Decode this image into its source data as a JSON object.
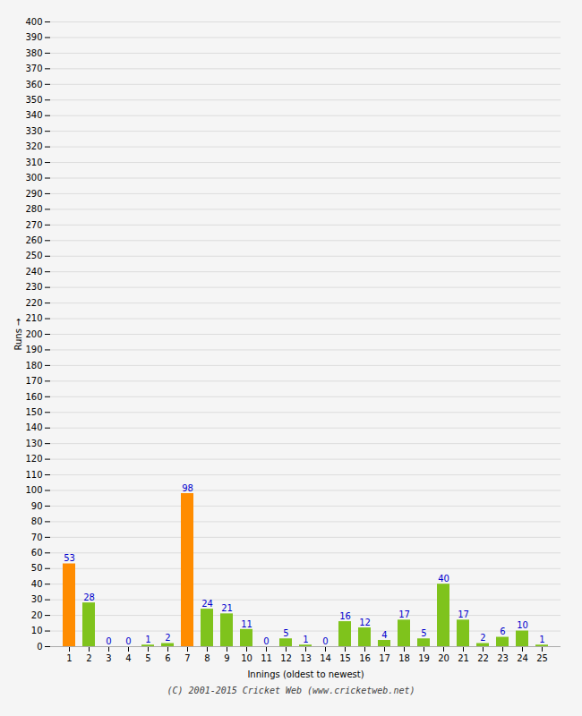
{
  "chart_data": {
    "type": "bar",
    "categories": [
      "1",
      "2",
      "3",
      "4",
      "5",
      "6",
      "7",
      "8",
      "9",
      "10",
      "11",
      "12",
      "13",
      "14",
      "15",
      "16",
      "17",
      "18",
      "19",
      "20",
      "21",
      "22",
      "23",
      "24",
      "25"
    ],
    "values": [
      53,
      28,
      0,
      0,
      1,
      2,
      98,
      24,
      21,
      11,
      0,
      5,
      1,
      0,
      16,
      12,
      4,
      17,
      5,
      40,
      17,
      2,
      6,
      10,
      1
    ],
    "colors": [
      "#ff8c00",
      "#7fc31c",
      "#7fc31c",
      "#7fc31c",
      "#7fc31c",
      "#7fc31c",
      "#ff8c00",
      "#7fc31c",
      "#7fc31c",
      "#7fc31c",
      "#7fc31c",
      "#7fc31c",
      "#7fc31c",
      "#7fc31c",
      "#7fc31c",
      "#7fc31c",
      "#7fc31c",
      "#7fc31c",
      "#7fc31c",
      "#7fc31c",
      "#7fc31c",
      "#7fc31c",
      "#7fc31c",
      "#7fc31c",
      "#7fc31c"
    ],
    "xlabel": "Innings (oldest to newest)",
    "ylabel": "Runs",
    "ylim": [
      0,
      400
    ],
    "yticks": [
      0,
      10,
      20,
      30,
      40,
      50,
      60,
      70,
      80,
      90,
      100,
      110,
      120,
      130,
      140,
      150,
      160,
      170,
      180,
      190,
      200,
      210,
      220,
      230,
      240,
      250,
      260,
      270,
      280,
      290,
      300,
      310,
      320,
      330,
      340,
      350,
      360,
      370,
      380,
      390,
      400
    ],
    "grid": true,
    "data_labels": true,
    "annotations": [
      "(C) 2001-2015 Cricket Web (www.cricketweb.net)"
    ]
  }
}
